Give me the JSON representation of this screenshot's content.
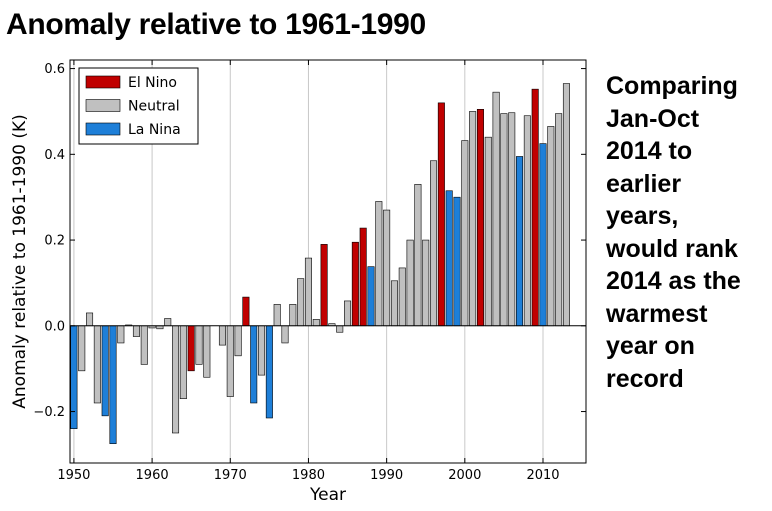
{
  "title": "Anomaly relative to 1961-1990",
  "side_note": [
    "Comparing",
    "Jan-Oct",
    "2014 to",
    "earlier",
    "years,",
    "would rank",
    "2014 as the",
    "warmest",
    "year on",
    "record"
  ],
  "colors": {
    "El Nino": "#c00000",
    "Neutral": "#c0c0c0",
    "La Nina": "#1e7fd8"
  },
  "chart_data": {
    "type": "bar",
    "xlabel": "Year",
    "ylabel": "Anomaly relative to 1961-1990 (K)",
    "xlim": [
      1949.5,
      2015.5
    ],
    "ylim": [
      -0.32,
      0.62
    ],
    "xticks": [
      1950,
      1960,
      1970,
      1980,
      1990,
      2000,
      2010
    ],
    "yticks": [
      -0.2,
      0.0,
      0.2,
      0.4,
      0.6
    ],
    "ytick_labels": [
      "−0.2",
      "0.0",
      "0.2",
      "0.4",
      "0.6"
    ],
    "grid": "vertical",
    "legend_position": "top-left",
    "legend": [
      "El Nino",
      "Neutral",
      "La Nina"
    ],
    "x": [
      1950,
      1951,
      1952,
      1953,
      1954,
      1955,
      1956,
      1957,
      1958,
      1959,
      1960,
      1961,
      1962,
      1963,
      1964,
      1965,
      1966,
      1967,
      1968,
      1969,
      1970,
      1971,
      1972,
      1973,
      1974,
      1975,
      1976,
      1977,
      1978,
      1979,
      1980,
      1981,
      1982,
      1983,
      1984,
      1985,
      1986,
      1987,
      1988,
      1989,
      1990,
      1991,
      1992,
      1993,
      1994,
      1995,
      1996,
      1997,
      1998,
      1999,
      2000,
      2001,
      2002,
      2003,
      2004,
      2005,
      2006,
      2007,
      2008,
      2009,
      2010,
      2011,
      2012,
      2013,
      2014
    ],
    "values": [
      -0.24,
      -0.105,
      0.03,
      -0.18,
      -0.21,
      -0.275,
      -0.04,
      0.002,
      -0.025,
      -0.09,
      -0.005,
      -0.007,
      0.017,
      -0.25,
      -0.17,
      -0.105,
      -0.09,
      -0.12,
      0.0,
      -0.045,
      -0.165,
      -0.07,
      0.067,
      -0.18,
      -0.115,
      -0.215,
      0.05,
      -0.04,
      0.05,
      0.11,
      0.158,
      0.015,
      0.19,
      0.005,
      -0.015,
      0.058,
      0.195,
      0.228,
      0.138,
      0.29,
      0.27,
      0.105,
      0.135,
      0.2,
      0.33,
      0.2,
      0.385,
      0.52,
      0.315,
      0.3,
      0.432,
      0.5,
      0.505,
      0.44,
      0.545,
      0.495,
      0.497,
      0.395,
      0.49,
      0.552,
      0.425,
      0.465,
      0.495,
      0.565,
      0.0
    ],
    "phase": [
      "La Nina",
      "Neutral",
      "Neutral",
      "Neutral",
      "La Nina",
      "La Nina",
      "Neutral",
      "Neutral",
      "Neutral",
      "Neutral",
      "Neutral",
      "Neutral",
      "Neutral",
      "Neutral",
      "Neutral",
      "El Nino",
      "Neutral",
      "Neutral",
      "Neutral",
      "Neutral",
      "Neutral",
      "Neutral",
      "El Nino",
      "La Nina",
      "Neutral",
      "La Nina",
      "Neutral",
      "Neutral",
      "Neutral",
      "Neutral",
      "Neutral",
      "Neutral",
      "El Nino",
      "Neutral",
      "Neutral",
      "Neutral",
      "El Nino",
      "El Nino",
      "La Nina",
      "Neutral",
      "Neutral",
      "Neutral",
      "Neutral",
      "Neutral",
      "Neutral",
      "Neutral",
      "Neutral",
      "El Nino",
      "La Nina",
      "La Nina",
      "Neutral",
      "Neutral",
      "El Nino",
      "Neutral",
      "Neutral",
      "Neutral",
      "Neutral",
      "La Nina",
      "Neutral",
      "El Nino",
      "La Nina",
      "Neutral",
      "Neutral",
      "Neutral",
      "Neutral"
    ]
  }
}
